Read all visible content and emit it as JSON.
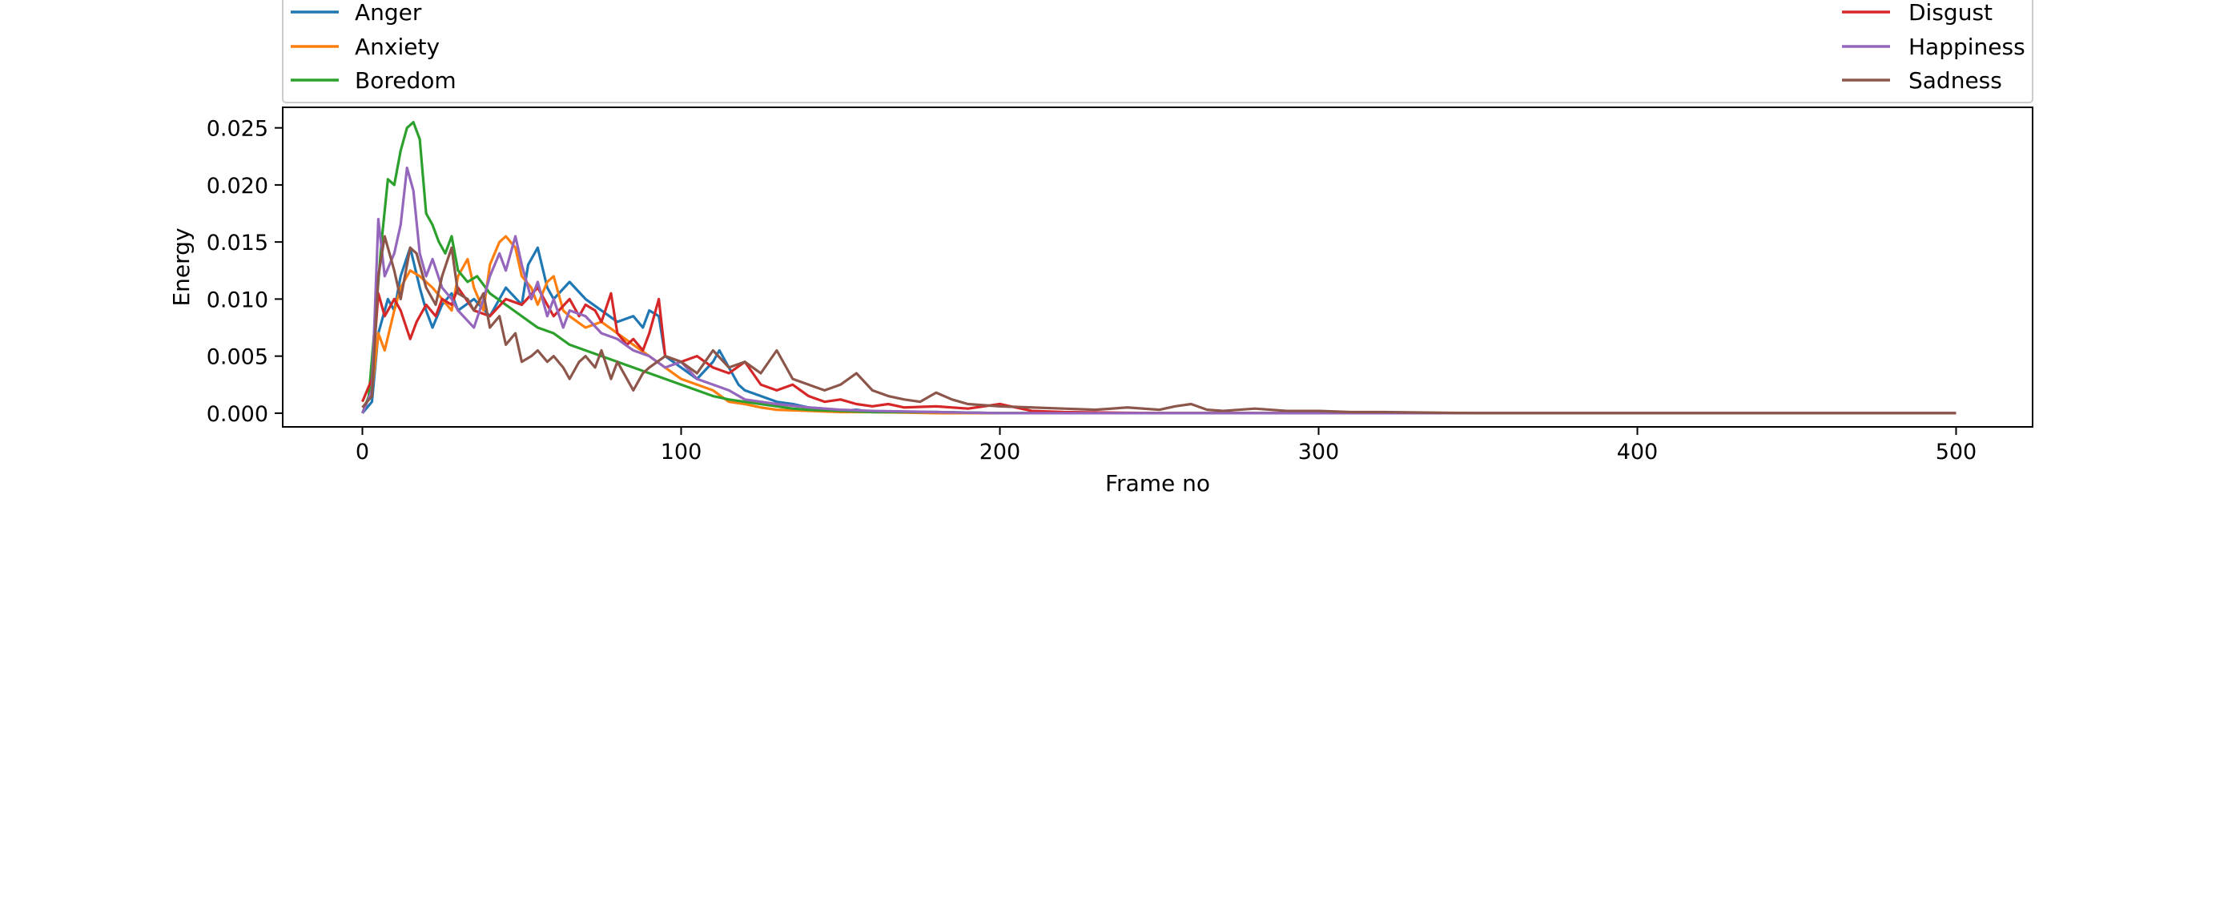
{
  "chart_data": {
    "type": "line",
    "title": "",
    "xlabel": "Frame no",
    "ylabel": "Energy",
    "xlim": [
      -25,
      524
    ],
    "ylim": [
      -0.0012,
      0.0268
    ],
    "x_ticks": [
      0,
      100,
      200,
      300,
      400,
      500
    ],
    "y_ticks": [
      0.0,
      0.005,
      0.01,
      0.015,
      0.02,
      0.025
    ],
    "x_tick_labels": [
      "0",
      "100",
      "200",
      "300",
      "400",
      "500"
    ],
    "y_tick_labels": [
      "0.000",
      "0.005",
      "0.010",
      "0.015",
      "0.020",
      "0.025"
    ],
    "grid": false,
    "legend_placement": "top, above plot, two columns",
    "series": [
      {
        "name": "Anger",
        "color": "#1f77b4",
        "x": [
          0,
          3,
          5,
          8,
          10,
          12,
          15,
          18,
          20,
          22,
          25,
          28,
          30,
          35,
          40,
          45,
          50,
          52,
          55,
          58,
          60,
          65,
          70,
          75,
          80,
          85,
          88,
          90,
          93,
          95,
          100,
          105,
          110,
          112,
          115,
          118,
          120,
          125,
          130,
          135,
          140,
          145,
          150,
          155,
          160,
          170,
          180,
          200,
          250,
          300,
          400,
          500
        ],
        "y": [
          0.0,
          0.001,
          0.007,
          0.01,
          0.009,
          0.012,
          0.0145,
          0.011,
          0.009,
          0.0075,
          0.0095,
          0.0105,
          0.009,
          0.01,
          0.0085,
          0.011,
          0.0095,
          0.013,
          0.0145,
          0.011,
          0.01,
          0.0115,
          0.01,
          0.009,
          0.008,
          0.0085,
          0.0075,
          0.009,
          0.0085,
          0.005,
          0.004,
          0.003,
          0.0045,
          0.0055,
          0.004,
          0.0025,
          0.002,
          0.0015,
          0.001,
          0.0008,
          0.0005,
          0.0004,
          0.0002,
          0.0003,
          0.0001,
          0.0001,
          0.0001,
          0.0,
          0.0,
          0.0,
          0.0,
          0.0
        ]
      },
      {
        "name": "Anxiety",
        "color": "#ff7f0e",
        "x": [
          0,
          3,
          5,
          7,
          10,
          12,
          15,
          18,
          20,
          22,
          25,
          28,
          30,
          33,
          35,
          38,
          40,
          43,
          45,
          48,
          50,
          53,
          55,
          58,
          60,
          63,
          65,
          70,
          75,
          80,
          85,
          90,
          95,
          100,
          105,
          110,
          115,
          120,
          125,
          130,
          140,
          150,
          160,
          180,
          200,
          250,
          300,
          400,
          500
        ],
        "y": [
          0.0,
          0.002,
          0.007,
          0.0055,
          0.009,
          0.011,
          0.0125,
          0.012,
          0.0115,
          0.011,
          0.01,
          0.009,
          0.012,
          0.0135,
          0.011,
          0.009,
          0.013,
          0.015,
          0.0155,
          0.0145,
          0.012,
          0.011,
          0.0095,
          0.0115,
          0.012,
          0.009,
          0.0085,
          0.0075,
          0.008,
          0.007,
          0.006,
          0.005,
          0.004,
          0.003,
          0.0025,
          0.002,
          0.001,
          0.0008,
          0.0005,
          0.0003,
          0.0002,
          0.0001,
          0.0001,
          0.0,
          0.0,
          0.0,
          0.0,
          0.0,
          0.0
        ]
      },
      {
        "name": "Boredom",
        "color": "#2ca02c",
        "x": [
          0,
          2,
          4,
          6,
          8,
          10,
          12,
          14,
          16,
          18,
          20,
          22,
          24,
          26,
          28,
          30,
          33,
          36,
          40,
          45,
          50,
          55,
          60,
          65,
          70,
          75,
          80,
          85,
          90,
          95,
          100,
          105,
          110,
          115,
          120,
          125,
          130,
          135,
          140,
          150,
          160,
          180,
          200,
          250,
          300,
          400,
          500
        ],
        "y": [
          0.0,
          0.0015,
          0.008,
          0.015,
          0.0205,
          0.02,
          0.023,
          0.025,
          0.0255,
          0.024,
          0.0175,
          0.0165,
          0.015,
          0.014,
          0.0155,
          0.0125,
          0.0115,
          0.012,
          0.0105,
          0.0095,
          0.0085,
          0.0075,
          0.007,
          0.006,
          0.0055,
          0.005,
          0.0045,
          0.004,
          0.0035,
          0.003,
          0.0025,
          0.002,
          0.0015,
          0.0012,
          0.001,
          0.0008,
          0.0006,
          0.0004,
          0.0003,
          0.0002,
          0.0001,
          0.0001,
          0.0,
          0.0,
          0.0,
          0.0,
          0.0
        ]
      },
      {
        "name": "Disgust",
        "color": "#d62728",
        "x": [
          0,
          3,
          5,
          7,
          10,
          12,
          15,
          17,
          20,
          23,
          25,
          28,
          30,
          35,
          40,
          45,
          50,
          55,
          60,
          65,
          68,
          70,
          73,
          75,
          78,
          80,
          83,
          85,
          88,
          90,
          93,
          95,
          100,
          105,
          110,
          115,
          120,
          125,
          130,
          135,
          140,
          145,
          150,
          155,
          160,
          165,
          170,
          180,
          190,
          200,
          210,
          220,
          250,
          300,
          400,
          500
        ],
        "y": [
          0.001,
          0.003,
          0.0105,
          0.0085,
          0.01,
          0.009,
          0.0065,
          0.008,
          0.0095,
          0.0085,
          0.01,
          0.0095,
          0.011,
          0.009,
          0.0085,
          0.01,
          0.0095,
          0.011,
          0.0085,
          0.01,
          0.0085,
          0.0095,
          0.009,
          0.008,
          0.0105,
          0.007,
          0.006,
          0.0065,
          0.0055,
          0.007,
          0.01,
          0.005,
          0.0045,
          0.005,
          0.004,
          0.0035,
          0.0045,
          0.0025,
          0.002,
          0.0025,
          0.0015,
          0.001,
          0.0012,
          0.0008,
          0.0006,
          0.0008,
          0.0005,
          0.0006,
          0.0004,
          0.0008,
          0.0002,
          0.0001,
          0.0,
          0.0,
          0.0,
          0.0
        ]
      },
      {
        "name": "Happiness",
        "color": "#9467bd",
        "x": [
          0,
          3,
          5,
          7,
          10,
          12,
          14,
          16,
          18,
          20,
          22,
          25,
          28,
          30,
          35,
          38,
          40,
          43,
          45,
          48,
          50,
          53,
          55,
          58,
          60,
          63,
          65,
          70,
          75,
          80,
          85,
          90,
          95,
          100,
          105,
          110,
          115,
          120,
          130,
          140,
          150,
          160,
          180,
          200,
          250,
          300,
          400,
          500
        ],
        "y": [
          0.0,
          0.002,
          0.017,
          0.012,
          0.014,
          0.0165,
          0.0215,
          0.0195,
          0.014,
          0.012,
          0.0135,
          0.011,
          0.01,
          0.009,
          0.0075,
          0.01,
          0.012,
          0.014,
          0.0125,
          0.0155,
          0.013,
          0.01,
          0.0115,
          0.0085,
          0.01,
          0.0075,
          0.009,
          0.0085,
          0.007,
          0.0065,
          0.0055,
          0.005,
          0.004,
          0.0045,
          0.003,
          0.0025,
          0.002,
          0.0012,
          0.0008,
          0.0005,
          0.0003,
          0.0002,
          0.0001,
          0.0,
          0.0,
          0.0,
          0.0,
          0.0
        ]
      },
      {
        "name": "Sadness",
        "color": "#8c564b",
        "x": [
          0,
          3,
          5,
          7,
          10,
          12,
          15,
          17,
          20,
          23,
          25,
          28,
          30,
          33,
          35,
          38,
          40,
          43,
          45,
          48,
          50,
          53,
          55,
          58,
          60,
          63,
          65,
          68,
          70,
          73,
          75,
          78,
          80,
          83,
          85,
          88,
          90,
          95,
          100,
          105,
          110,
          115,
          120,
          125,
          130,
          135,
          140,
          145,
          150,
          155,
          160,
          165,
          170,
          175,
          180,
          185,
          190,
          200,
          210,
          220,
          230,
          240,
          250,
          255,
          260,
          265,
          270,
          280,
          290,
          300,
          310,
          320,
          350,
          400,
          500
        ],
        "y": [
          0.0005,
          0.0015,
          0.012,
          0.0155,
          0.0125,
          0.01,
          0.0145,
          0.014,
          0.011,
          0.0095,
          0.012,
          0.0145,
          0.0105,
          0.01,
          0.009,
          0.0105,
          0.0075,
          0.0085,
          0.006,
          0.007,
          0.0045,
          0.005,
          0.0055,
          0.0045,
          0.005,
          0.004,
          0.003,
          0.0045,
          0.005,
          0.004,
          0.0055,
          0.003,
          0.0045,
          0.003,
          0.002,
          0.0035,
          0.004,
          0.005,
          0.0045,
          0.0035,
          0.0055,
          0.004,
          0.0045,
          0.0035,
          0.0055,
          0.003,
          0.0025,
          0.002,
          0.0025,
          0.0035,
          0.002,
          0.0015,
          0.0012,
          0.001,
          0.0018,
          0.0012,
          0.0008,
          0.0006,
          0.0005,
          0.0004,
          0.0003,
          0.0005,
          0.0003,
          0.0006,
          0.0008,
          0.0003,
          0.0002,
          0.0004,
          0.0002,
          0.0002,
          0.0001,
          0.0001,
          0.0,
          0.0,
          0.0
        ]
      }
    ]
  }
}
